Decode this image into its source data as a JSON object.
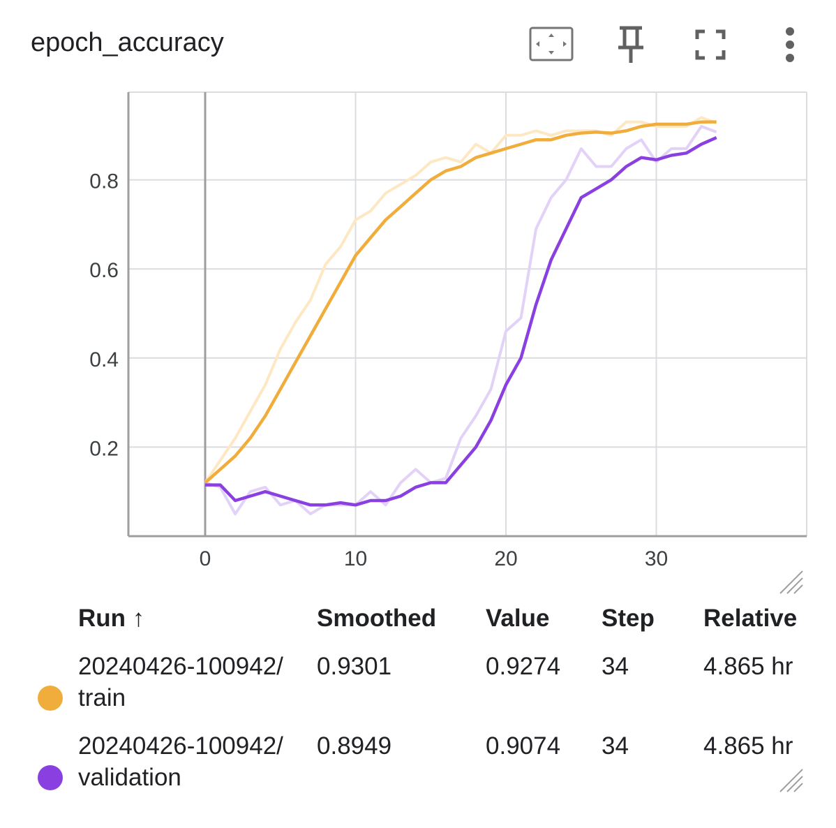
{
  "card": {
    "title": "epoch_accuracy",
    "toolbar": {
      "fit_icon": "fit-domain-icon",
      "pin_icon": "pin-icon",
      "fullscreen_icon": "fullscreen-icon",
      "more_icon": "more-vert-icon"
    }
  },
  "chart_data": {
    "type": "line",
    "title": "",
    "xlabel": "",
    "ylabel": "",
    "xlim": [
      -5,
      40
    ],
    "ylim": [
      0,
      1
    ],
    "x_ticks": [
      "0",
      "10",
      "20",
      "30"
    ],
    "y_ticks": [
      "0.2",
      "0.4",
      "0.6",
      "0.8"
    ],
    "grid": true,
    "legend": "table-below",
    "series": [
      {
        "name": "20240426-100942/train",
        "color": "#f0ad3c",
        "raw_color": "#fde8c3",
        "x": [
          0,
          1,
          2,
          3,
          4,
          5,
          6,
          7,
          8,
          9,
          10,
          11,
          12,
          13,
          14,
          15,
          16,
          17,
          18,
          19,
          20,
          21,
          22,
          23,
          24,
          25,
          26,
          27,
          28,
          29,
          30,
          31,
          32,
          33,
          34
        ],
        "raw": [
          0.12,
          0.17,
          0.22,
          0.28,
          0.34,
          0.42,
          0.48,
          0.53,
          0.61,
          0.65,
          0.71,
          0.73,
          0.77,
          0.79,
          0.81,
          0.84,
          0.85,
          0.84,
          0.88,
          0.86,
          0.9,
          0.9,
          0.91,
          0.9,
          0.91,
          0.91,
          0.91,
          0.9,
          0.93,
          0.93,
          0.92,
          0.92,
          0.92,
          0.94,
          0.9274
        ],
        "smoothed": [
          0.12,
          0.15,
          0.18,
          0.22,
          0.27,
          0.33,
          0.39,
          0.45,
          0.51,
          0.57,
          0.63,
          0.67,
          0.71,
          0.74,
          0.77,
          0.8,
          0.82,
          0.83,
          0.85,
          0.86,
          0.87,
          0.88,
          0.89,
          0.89,
          0.9,
          0.905,
          0.907,
          0.905,
          0.91,
          0.92,
          0.925,
          0.925,
          0.925,
          0.93,
          0.9301
        ]
      },
      {
        "name": "20240426-100942/validation",
        "color": "#8a3fe0",
        "raw_color": "#e3d2f8",
        "x": [
          0,
          1,
          2,
          3,
          4,
          5,
          6,
          7,
          8,
          9,
          10,
          11,
          12,
          13,
          14,
          15,
          16,
          17,
          18,
          19,
          20,
          21,
          22,
          23,
          24,
          25,
          26,
          27,
          28,
          29,
          30,
          31,
          32,
          33,
          34
        ],
        "raw": [
          0.12,
          0.11,
          0.05,
          0.1,
          0.11,
          0.07,
          0.08,
          0.05,
          0.07,
          0.07,
          0.07,
          0.1,
          0.07,
          0.12,
          0.15,
          0.12,
          0.13,
          0.22,
          0.27,
          0.33,
          0.46,
          0.49,
          0.69,
          0.76,
          0.8,
          0.87,
          0.83,
          0.83,
          0.87,
          0.89,
          0.84,
          0.87,
          0.87,
          0.92,
          0.9074
        ],
        "smoothed": [
          0.115,
          0.115,
          0.08,
          0.09,
          0.1,
          0.09,
          0.08,
          0.07,
          0.07,
          0.075,
          0.07,
          0.08,
          0.08,
          0.09,
          0.11,
          0.12,
          0.12,
          0.16,
          0.2,
          0.26,
          0.34,
          0.4,
          0.52,
          0.62,
          0.69,
          0.76,
          0.78,
          0.8,
          0.83,
          0.85,
          0.845,
          0.855,
          0.86,
          0.88,
          0.8949
        ]
      }
    ]
  },
  "table": {
    "headers": {
      "run": "Run ↑",
      "smoothed": "Smoothed",
      "value": "Value",
      "step": "Step",
      "relative": "Relative"
    },
    "rows": [
      {
        "color": "#f0ad3c",
        "run_line1": "20240426-100942/",
        "run_line2": "train",
        "smoothed": "0.9301",
        "value": "0.9274",
        "step": "34",
        "relative": "4.865 hr"
      },
      {
        "color": "#8a3fe0",
        "run_line1": "20240426-100942/",
        "run_line2": "validation",
        "smoothed": "0.8949",
        "value": "0.9074",
        "step": "34",
        "relative": "4.865 hr"
      }
    ]
  }
}
